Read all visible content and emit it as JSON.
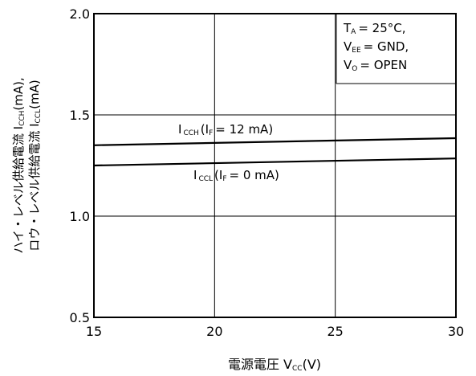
{
  "chart_data": {
    "type": "line",
    "xlabel_main": "電源電圧 V",
    "xlabel_sub": "CC",
    "xlabel_unit": "(V)",
    "ylabel_line1": "ハイ・レベル供給電流 I",
    "ylabel_line1_sub": "CCH",
    "ylabel_line1_unit": "(mA),",
    "ylabel_line2": "ロウ・レベル供給電流 I",
    "ylabel_line2_sub": "CCL",
    "ylabel_line2_unit": "(mA)",
    "xlim": [
      15,
      30
    ],
    "ylim": [
      0.5,
      2.0
    ],
    "x_ticks": [
      "15",
      "20",
      "25",
      "30"
    ],
    "y_ticks": [
      "0.5",
      "1.0",
      "1.5",
      "2.0"
    ],
    "grid": true,
    "series": [
      {
        "name": "ICCH (IF = 12 mA)",
        "label_main": "I",
        "label_sub": "CCH",
        "label_rest": "(I",
        "label_sub2": "F",
        "label_rest2": "= 12 mA)",
        "x": [
          15,
          30
        ],
        "y": [
          1.35,
          1.385
        ]
      },
      {
        "name": "ICCL (IF = 0 mA)",
        "label_main": "I",
        "label_sub": "CCL",
        "label_rest": "(I",
        "label_sub2": "F",
        "label_rest2": "= 0 mA)",
        "x": [
          15,
          30
        ],
        "y": [
          1.25,
          1.285
        ]
      }
    ],
    "conditions": [
      {
        "main": "T",
        "sub": "A",
        "rest": "= 25°C,"
      },
      {
        "main": "V",
        "sub": "EE",
        "rest": "= GND,"
      },
      {
        "main": "V",
        "sub": "O",
        "rest": "= OPEN"
      }
    ]
  }
}
